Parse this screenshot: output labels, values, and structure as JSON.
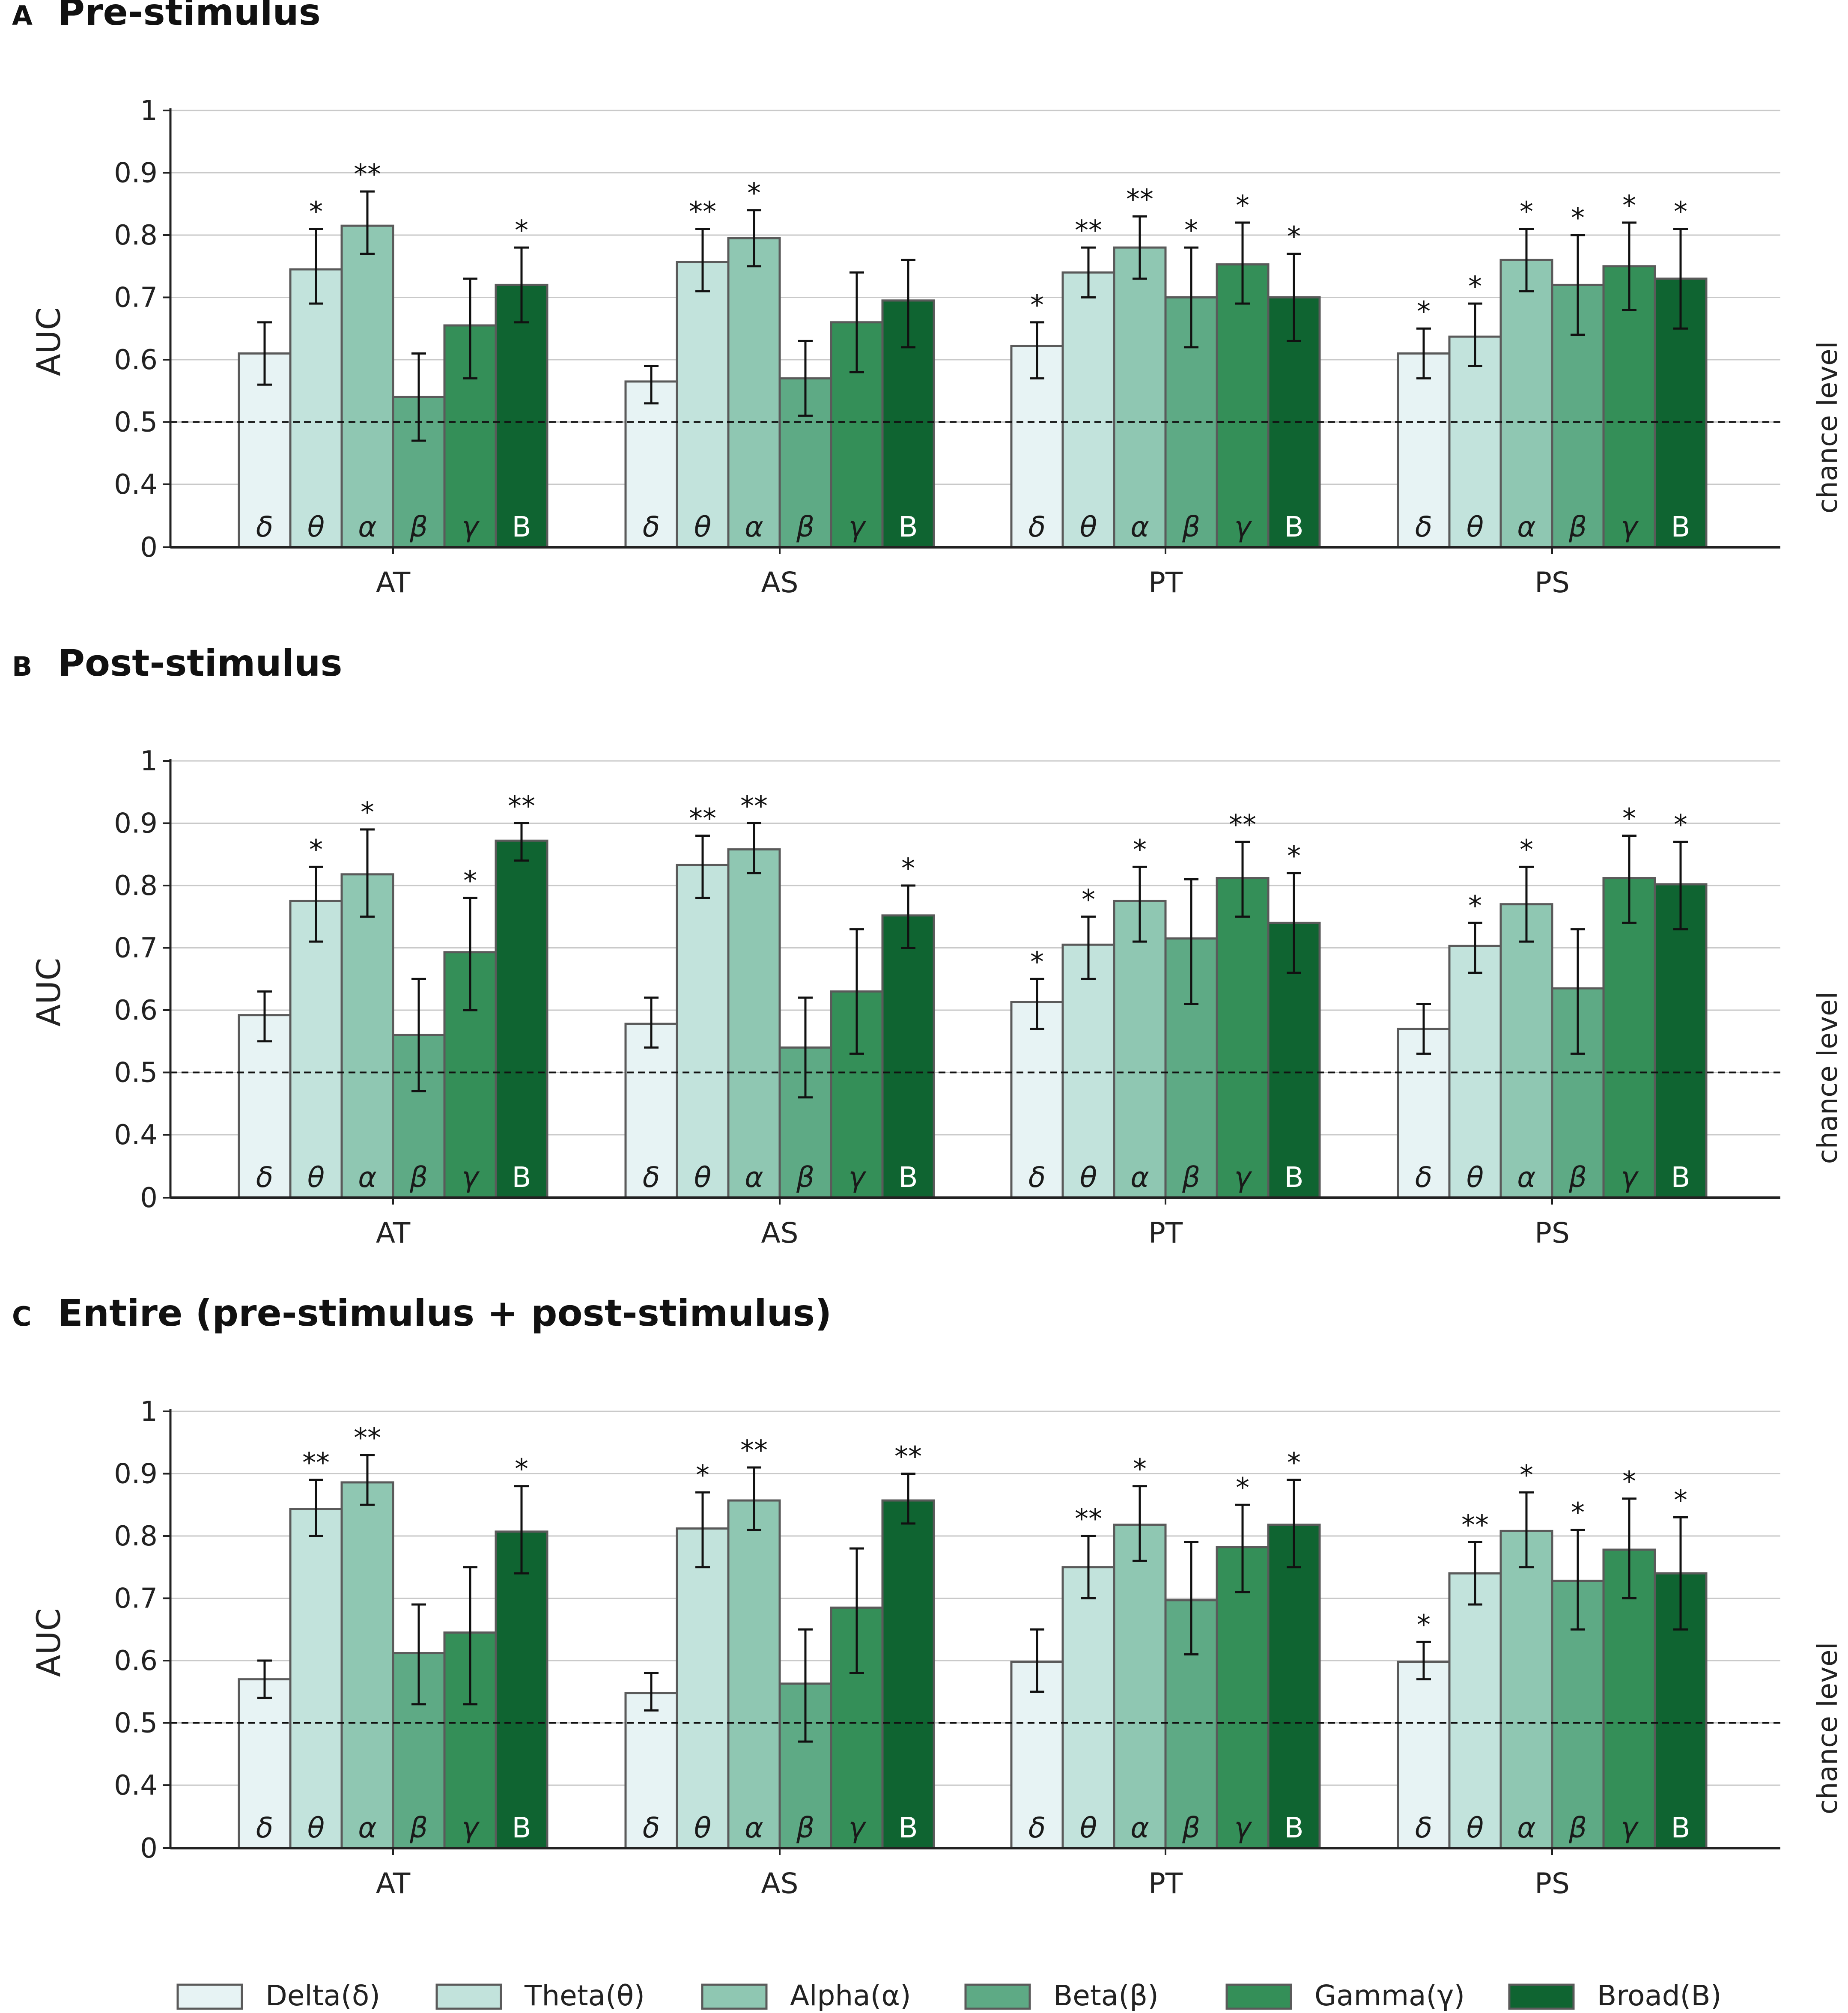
{
  "bands": [
    {
      "name": "Delta",
      "symbol": "δ",
      "legend": "Delta(δ)",
      "color": "#e7f3f4"
    },
    {
      "name": "Theta",
      "symbol": "θ",
      "legend": "Theta(θ)",
      "color": "#c2e3dc"
    },
    {
      "name": "Alpha",
      "symbol": "α",
      "legend": "Alpha(α)",
      "color": "#8fc7b2"
    },
    {
      "name": "Beta",
      "symbol": "β",
      "legend": "Beta(β)",
      "color": "#5eaa85"
    },
    {
      "name": "Gamma",
      "symbol": "γ",
      "legend": "Gamma(γ)",
      "color": "#348f58"
    },
    {
      "name": "Broad",
      "symbol": "B",
      "legend": "Broad(B)",
      "color": "#0f6431"
    }
  ],
  "chart_data": [
    {
      "type": "bar",
      "panel_letter": "A",
      "title": "Pre-stimulus",
      "ylabel": "AUC",
      "ylim": [
        0,
        1
      ],
      "yticks": [
        "0",
        "0.4",
        "0.5",
        "0.6",
        "0.7",
        "0.8",
        "0.9",
        "1"
      ],
      "reference_line": {
        "value": 0.5,
        "label": "chance level"
      },
      "categories": [
        "AT",
        "AS",
        "PT",
        "PS"
      ],
      "series": [
        {
          "name": "Delta",
          "values": [
            0.61,
            0.565,
            0.622,
            0.61
          ],
          "err_lo": [
            0.56,
            0.53,
            0.57,
            0.57
          ],
          "err_hi": [
            0.66,
            0.59,
            0.66,
            0.65
          ],
          "sig": [
            "",
            "",
            "*",
            "*"
          ]
        },
        {
          "name": "Theta",
          "values": [
            0.745,
            0.757,
            0.74,
            0.637
          ],
          "err_lo": [
            0.69,
            0.71,
            0.7,
            0.59
          ],
          "err_hi": [
            0.81,
            0.81,
            0.78,
            0.69
          ],
          "sig": [
            "*",
            "**",
            "**",
            "*"
          ]
        },
        {
          "name": "Alpha",
          "values": [
            0.815,
            0.795,
            0.78,
            0.76
          ],
          "err_lo": [
            0.77,
            0.75,
            0.73,
            0.71
          ],
          "err_hi": [
            0.87,
            0.84,
            0.83,
            0.81
          ],
          "sig": [
            "**",
            "*",
            "**",
            "*"
          ]
        },
        {
          "name": "Beta",
          "values": [
            0.54,
            0.57,
            0.7,
            0.72
          ],
          "err_lo": [
            0.47,
            0.51,
            0.62,
            0.64
          ],
          "err_hi": [
            0.61,
            0.63,
            0.78,
            0.8
          ],
          "sig": [
            "",
            "",
            "*",
            "*"
          ]
        },
        {
          "name": "Gamma",
          "values": [
            0.655,
            0.66,
            0.753,
            0.75
          ],
          "err_lo": [
            0.57,
            0.58,
            0.69,
            0.68
          ],
          "err_hi": [
            0.73,
            0.74,
            0.82,
            0.82
          ],
          "sig": [
            "",
            "",
            "*",
            "*"
          ]
        },
        {
          "name": "Broad",
          "values": [
            0.72,
            0.695,
            0.7,
            0.73
          ],
          "err_lo": [
            0.66,
            0.62,
            0.63,
            0.65
          ],
          "err_hi": [
            0.78,
            0.76,
            0.77,
            0.81
          ],
          "sig": [
            "*",
            "",
            "*",
            "*"
          ]
        }
      ]
    },
    {
      "type": "bar",
      "panel_letter": "B",
      "title": "Post-stimulus",
      "ylabel": "AUC",
      "ylim": [
        0,
        1
      ],
      "yticks": [
        "0",
        "0.4",
        "0.5",
        "0.6",
        "0.7",
        "0.8",
        "0.9",
        "1"
      ],
      "reference_line": {
        "value": 0.5,
        "label": "chance level"
      },
      "categories": [
        "AT",
        "AS",
        "PT",
        "PS"
      ],
      "series": [
        {
          "name": "Delta",
          "values": [
            0.592,
            0.578,
            0.613,
            0.57
          ],
          "err_lo": [
            0.55,
            0.54,
            0.57,
            0.53
          ],
          "err_hi": [
            0.63,
            0.62,
            0.65,
            0.61
          ],
          "sig": [
            "",
            "",
            "*",
            ""
          ]
        },
        {
          "name": "Theta",
          "values": [
            0.775,
            0.833,
            0.705,
            0.703
          ],
          "err_lo": [
            0.71,
            0.78,
            0.65,
            0.66
          ],
          "err_hi": [
            0.83,
            0.88,
            0.75,
            0.74
          ],
          "sig": [
            "*",
            "**",
            "*",
            "*"
          ]
        },
        {
          "name": "Alpha",
          "values": [
            0.818,
            0.858,
            0.775,
            0.77
          ],
          "err_lo": [
            0.75,
            0.82,
            0.71,
            0.71
          ],
          "err_hi": [
            0.89,
            0.9,
            0.83,
            0.83
          ],
          "sig": [
            "*",
            "**",
            "*",
            "*"
          ]
        },
        {
          "name": "Beta",
          "values": [
            0.56,
            0.54,
            0.715,
            0.635
          ],
          "err_lo": [
            0.47,
            0.46,
            0.61,
            0.53
          ],
          "err_hi": [
            0.65,
            0.62,
            0.81,
            0.73
          ],
          "sig": [
            "",
            "",
            "",
            ""
          ]
        },
        {
          "name": "Gamma",
          "values": [
            0.693,
            0.63,
            0.812,
            0.812
          ],
          "err_lo": [
            0.6,
            0.53,
            0.75,
            0.74
          ],
          "err_hi": [
            0.78,
            0.73,
            0.87,
            0.88
          ],
          "sig": [
            "*",
            "",
            "**",
            "*"
          ]
        },
        {
          "name": "Broad",
          "values": [
            0.872,
            0.752,
            0.74,
            0.802
          ],
          "err_lo": [
            0.84,
            0.7,
            0.66,
            0.73
          ],
          "err_hi": [
            0.9,
            0.8,
            0.82,
            0.87
          ],
          "sig": [
            "**",
            "*",
            "*",
            "*"
          ]
        }
      ]
    },
    {
      "type": "bar",
      "panel_letter": "C",
      "title": "Entire (pre-stimulus + post-stimulus)",
      "ylabel": "AUC",
      "ylim": [
        0,
        1
      ],
      "yticks": [
        "0",
        "0.4",
        "0.5",
        "0.6",
        "0.7",
        "0.8",
        "0.9",
        "1"
      ],
      "reference_line": {
        "value": 0.5,
        "label": "chance level"
      },
      "categories": [
        "AT",
        "AS",
        "PT",
        "PS"
      ],
      "series": [
        {
          "name": "Delta",
          "values": [
            0.57,
            0.548,
            0.598,
            0.598
          ],
          "err_lo": [
            0.54,
            0.52,
            0.55,
            0.57
          ],
          "err_hi": [
            0.6,
            0.58,
            0.65,
            0.63
          ],
          "sig": [
            "",
            "",
            "",
            "*"
          ]
        },
        {
          "name": "Theta",
          "values": [
            0.843,
            0.812,
            0.75,
            0.74
          ],
          "err_lo": [
            0.8,
            0.75,
            0.7,
            0.69
          ],
          "err_hi": [
            0.89,
            0.87,
            0.8,
            0.79
          ],
          "sig": [
            "**",
            "*",
            "**",
            "**"
          ]
        },
        {
          "name": "Alpha",
          "values": [
            0.886,
            0.857,
            0.818,
            0.808
          ],
          "err_lo": [
            0.85,
            0.81,
            0.76,
            0.75
          ],
          "err_hi": [
            0.93,
            0.91,
            0.88,
            0.87
          ],
          "sig": [
            "**",
            "**",
            "*",
            "*"
          ]
        },
        {
          "name": "Beta",
          "values": [
            0.612,
            0.563,
            0.697,
            0.728
          ],
          "err_lo": [
            0.53,
            0.47,
            0.61,
            0.65
          ],
          "err_hi": [
            0.69,
            0.65,
            0.79,
            0.81
          ],
          "sig": [
            "",
            "",
            "",
            "*"
          ]
        },
        {
          "name": "Gamma",
          "values": [
            0.645,
            0.685,
            0.782,
            0.778
          ],
          "err_lo": [
            0.53,
            0.58,
            0.71,
            0.7
          ],
          "err_hi": [
            0.75,
            0.78,
            0.85,
            0.86
          ],
          "sig": [
            "",
            "",
            "*",
            "*"
          ]
        },
        {
          "name": "Broad",
          "values": [
            0.807,
            0.857,
            0.818,
            0.74
          ],
          "err_lo": [
            0.74,
            0.82,
            0.75,
            0.65
          ],
          "err_hi": [
            0.88,
            0.9,
            0.89,
            0.83
          ],
          "sig": [
            "*",
            "**",
            "*",
            "*"
          ]
        }
      ]
    }
  ]
}
